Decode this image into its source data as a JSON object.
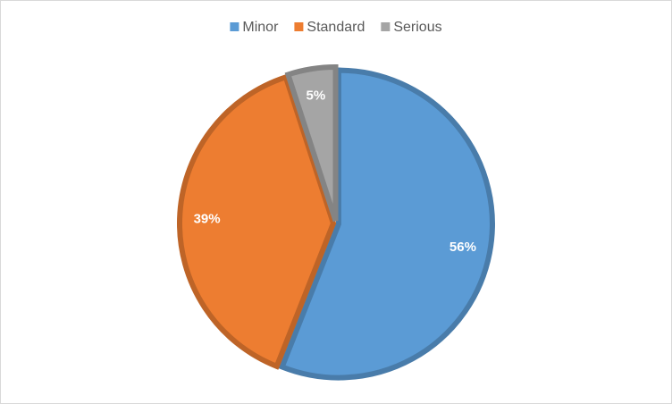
{
  "chart_data": {
    "type": "pie",
    "categories": [
      "Minor",
      "Standard",
      "Serious"
    ],
    "values": [
      56,
      39,
      5
    ],
    "value_labels": [
      "56%",
      "39%",
      "5%"
    ],
    "colors": [
      "#5b9bd5",
      "#ed7d31",
      "#a5a5a5"
    ],
    "legend": "top"
  }
}
